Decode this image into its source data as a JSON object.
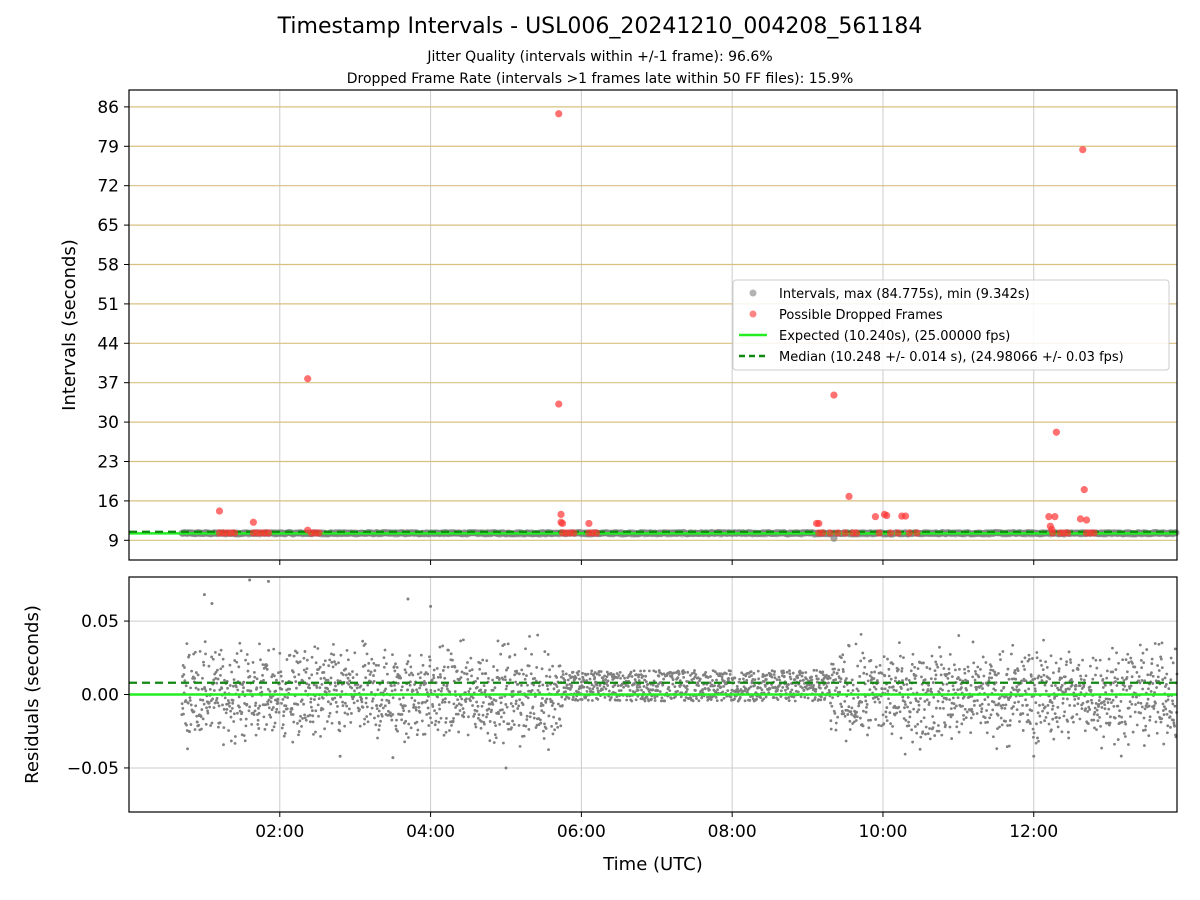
{
  "title": "Timestamp Intervals - USL006_20241210_004208_561184",
  "subtitle_1": "Jitter Quality (intervals within +/-1 frame): 96.6%",
  "subtitle_2": "Dropped Frame Rate (intervals >1 frames late within 50 FF files): 15.9%",
  "colors": {
    "intervals": "#808080",
    "dropped": "#ff3333",
    "expected": "#22ee22",
    "median": "#118811",
    "hgrid_top": "#d8c080",
    "grid": "#cccccc"
  },
  "chart_data": [
    {
      "type": "scatter",
      "xlabel": "Time (UTC)",
      "ylabel": "Intervals (seconds)",
      "x_unit": "hours UTC",
      "xlim": [
        0.0,
        13.9
      ],
      "ylim": [
        5.5,
        89
      ],
      "x_ticks": [
        {
          "value": 2,
          "label": "02:00"
        },
        {
          "value": 4,
          "label": "04:00"
        },
        {
          "value": 6,
          "label": "06:00"
        },
        {
          "value": 8,
          "label": "08:00"
        },
        {
          "value": 10,
          "label": "10:00"
        },
        {
          "value": 12,
          "label": "12:00"
        }
      ],
      "y_ticks": [
        86,
        79,
        72,
        65,
        58,
        51,
        44,
        37,
        30,
        23,
        16,
        9
      ],
      "grid": "on",
      "legend_position": "center-right",
      "intervals_series": {
        "name": "Intervals, max (84.775s), min (9.342s)",
        "x_range": [
          0.7,
          13.9
        ],
        "y_typical": 10.25,
        "points": [
          [
            9.35,
            9.342
          ]
        ]
      },
      "dropped_series": {
        "name": "Possible Dropped Frames",
        "points": [
          [
            1.2,
            14.2
          ],
          [
            1.2,
            10.3
          ],
          [
            1.25,
            10.3
          ],
          [
            1.3,
            10.3
          ],
          [
            1.35,
            10.3
          ],
          [
            1.4,
            10.3
          ],
          [
            1.65,
            12.2
          ],
          [
            1.65,
            10.3
          ],
          [
            1.7,
            10.3
          ],
          [
            1.75,
            10.3
          ],
          [
            1.8,
            10.3
          ],
          [
            1.85,
            10.3
          ],
          [
            2.37,
            37.7
          ],
          [
            2.37,
            10.8
          ],
          [
            2.42,
            10.3
          ],
          [
            2.47,
            10.3
          ],
          [
            2.52,
            10.3
          ],
          [
            5.7,
            84.775
          ],
          [
            5.7,
            33.2
          ],
          [
            5.73,
            13.6
          ],
          [
            5.73,
            12.2
          ],
          [
            5.75,
            12.0
          ],
          [
            5.75,
            10.3
          ],
          [
            5.8,
            10.3
          ],
          [
            5.85,
            10.3
          ],
          [
            5.9,
            10.3
          ],
          [
            6.1,
            12.0
          ],
          [
            6.1,
            10.3
          ],
          [
            6.15,
            10.3
          ],
          [
            6.2,
            10.3
          ],
          [
            9.12,
            12.0
          ],
          [
            9.15,
            12.0
          ],
          [
            9.15,
            10.3
          ],
          [
            9.2,
            10.3
          ],
          [
            9.3,
            10.3
          ],
          [
            9.35,
            34.8
          ],
          [
            9.4,
            10.3
          ],
          [
            9.5,
            10.3
          ],
          [
            9.55,
            16.8
          ],
          [
            9.6,
            10.3
          ],
          [
            9.65,
            10.3
          ],
          [
            9.9,
            13.2
          ],
          [
            9.95,
            10.3
          ],
          [
            10.02,
            13.6
          ],
          [
            10.05,
            13.4
          ],
          [
            10.1,
            10.3
          ],
          [
            10.2,
            10.3
          ],
          [
            10.25,
            13.3
          ],
          [
            10.3,
            13.3
          ],
          [
            10.35,
            10.3
          ],
          [
            10.45,
            10.3
          ],
          [
            12.2,
            13.2
          ],
          [
            12.22,
            11.5
          ],
          [
            12.24,
            10.9
          ],
          [
            12.25,
            10.3
          ],
          [
            12.28,
            13.2
          ],
          [
            12.3,
            28.2
          ],
          [
            12.35,
            10.3
          ],
          [
            12.4,
            10.3
          ],
          [
            12.45,
            10.3
          ],
          [
            12.62,
            12.8
          ],
          [
            12.65,
            78.4
          ],
          [
            12.67,
            18.0
          ],
          [
            12.7,
            12.6
          ],
          [
            12.7,
            10.3
          ],
          [
            12.75,
            10.3
          ],
          [
            12.8,
            10.3
          ]
        ]
      },
      "reference_lines": [
        {
          "name": "Expected (10.240s), (25.00000 fps)",
          "y": 10.24,
          "style": "solid"
        },
        {
          "name": "Median (10.248 +/- 0.014 s), (24.98066 +/- 0.03 fps)",
          "y": 10.248,
          "style": "dashed"
        }
      ]
    },
    {
      "type": "scatter",
      "xlabel": "Time (UTC)",
      "ylabel": "Residuals (seconds)",
      "xlim": [
        0.0,
        13.9
      ],
      "ylim": [
        -0.08,
        0.08
      ],
      "y_ticks": [
        {
          "value": 0.05,
          "label": "0.05"
        },
        {
          "value": 0.0,
          "label": "0.00"
        },
        {
          "value": -0.05,
          "label": "−0.05"
        }
      ],
      "grid": "on",
      "residual_segments": [
        {
          "x_range": [
            0.7,
            5.75
          ],
          "spread": 0.045
        },
        {
          "x_range": [
            5.75,
            9.3
          ],
          "spread": 0.015
        },
        {
          "x_range": [
            9.3,
            13.9
          ],
          "spread": 0.045
        }
      ],
      "outliers": [
        [
          1.0,
          0.068
        ],
        [
          1.1,
          0.062
        ],
        [
          1.6,
          0.078
        ],
        [
          1.85,
          0.077
        ],
        [
          3.7,
          0.065
        ],
        [
          4.0,
          0.06
        ],
        [
          5.0,
          -0.05
        ],
        [
          3.5,
          -0.043
        ],
        [
          2.8,
          -0.042
        ],
        [
          12.0,
          -0.042
        ]
      ],
      "reference_lines": [
        {
          "y": 0.0,
          "style": "solid"
        },
        {
          "y": 0.008,
          "style": "dashed"
        }
      ]
    }
  ]
}
